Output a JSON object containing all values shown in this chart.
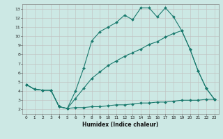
{
  "xlabel": "Humidex (Indice chaleur)",
  "bg_color": "#cce8e4",
  "line_color": "#1a7a6e",
  "grid_color": "#c0c0c0",
  "line1_x": [
    0,
    1,
    2,
    3,
    4,
    5,
    6,
    7,
    8,
    9,
    10,
    11,
    12,
    13,
    14,
    15,
    16,
    17,
    18,
    19,
    20,
    21,
    22,
    23
  ],
  "line1_y": [
    4.7,
    4.2,
    4.1,
    4.1,
    2.3,
    2.1,
    4.0,
    6.5,
    9.5,
    10.5,
    11.0,
    11.5,
    12.3,
    11.8,
    13.1,
    13.1,
    12.1,
    13.1,
    12.1,
    10.6,
    8.6,
    6.2,
    4.3,
    3.1
  ],
  "line2_x": [
    0,
    1,
    2,
    3,
    4,
    5,
    6,
    7,
    8,
    9,
    10,
    11,
    12,
    13,
    14,
    15,
    16,
    17,
    18,
    19,
    20,
    21,
    22,
    23
  ],
  "line2_y": [
    4.7,
    4.2,
    4.1,
    4.1,
    2.3,
    2.1,
    3.2,
    4.3,
    5.4,
    6.1,
    6.8,
    7.3,
    7.8,
    8.2,
    8.6,
    9.1,
    9.4,
    9.9,
    10.3,
    10.6,
    8.6,
    6.2,
    4.3,
    3.1
  ],
  "line3_x": [
    0,
    1,
    2,
    3,
    4,
    5,
    6,
    7,
    8,
    9,
    10,
    11,
    12,
    13,
    14,
    15,
    16,
    17,
    18,
    19,
    20,
    21,
    22,
    23
  ],
  "line3_y": [
    4.7,
    4.2,
    4.1,
    4.1,
    2.3,
    2.1,
    2.2,
    2.2,
    2.3,
    2.3,
    2.4,
    2.5,
    2.5,
    2.6,
    2.7,
    2.7,
    2.8,
    2.8,
    2.9,
    3.0,
    3.0,
    3.0,
    3.1,
    3.1
  ],
  "xlim": [
    -0.5,
    23.5
  ],
  "ylim": [
    1.5,
    13.5
  ],
  "xticks": [
    0,
    1,
    2,
    3,
    4,
    5,
    6,
    7,
    8,
    9,
    10,
    11,
    12,
    13,
    14,
    15,
    16,
    17,
    18,
    19,
    20,
    21,
    22,
    23
  ],
  "yticks": [
    2,
    3,
    4,
    5,
    6,
    7,
    8,
    9,
    10,
    11,
    12,
    13
  ]
}
